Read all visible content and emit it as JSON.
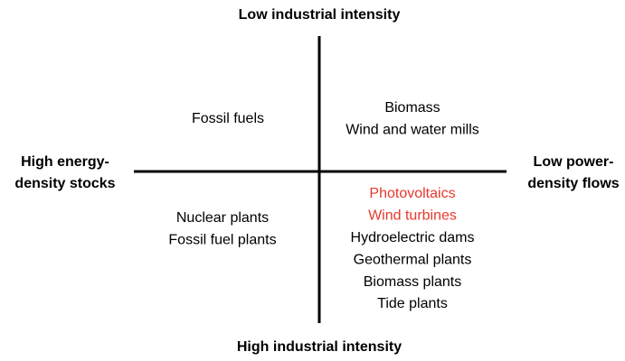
{
  "top_label": "Low industrial intensity",
  "bottom_label": "High industrial intensity",
  "left_label": [
    "High energy-",
    "density stocks"
  ],
  "right_label": [
    "Low power-",
    "density flows"
  ],
  "quadrants": {
    "top_left": [
      {
        "text": "Fossil fuels",
        "color": "#000000"
      }
    ],
    "top_right": [
      {
        "text": "Biomass",
        "color": "#000000"
      },
      {
        "text": "Wind and water mills",
        "color": "#000000"
      }
    ],
    "bottom_left": [
      {
        "text": "Nuclear plants",
        "color": "#000000"
      },
      {
        "text": "Fossil fuel plants",
        "color": "#000000"
      }
    ],
    "bottom_right": [
      {
        "text": "Photovoltaics",
        "color": "#e8382b"
      },
      {
        "text": "Wind turbines",
        "color": "#e8382b"
      },
      {
        "text": "Hydroelectric dams",
        "color": "#000000"
      },
      {
        "text": "Geothermal plants",
        "color": "#000000"
      },
      {
        "text": "Biomass plants",
        "color": "#000000"
      },
      {
        "text": "Tide plants",
        "color": "#000000"
      }
    ]
  }
}
